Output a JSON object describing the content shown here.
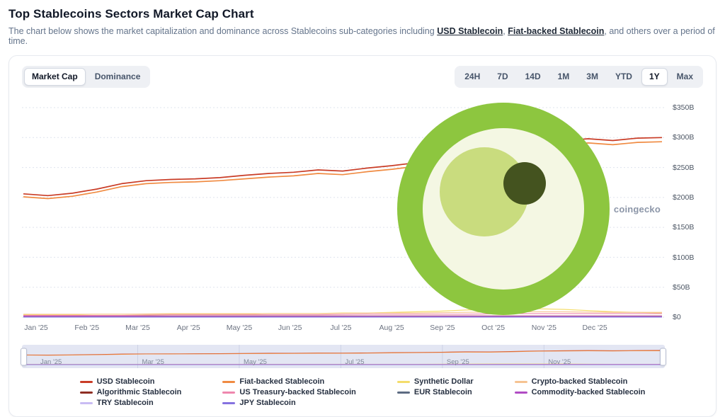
{
  "page": {
    "title": "Top Stablecoins Sectors Market Cap Chart",
    "subtitle_prefix": "The chart below shows the market capitalization and dominance across Stablecoins sub-categories including ",
    "usd_link": "USD Stablecoin",
    "subtitle_mid": ", ",
    "fiat_link": "Fiat-backed Stablecoin",
    "subtitle_suffix": ", and others over a period of time."
  },
  "toolbar": {
    "metric_tabs": [
      {
        "label": "Market Cap",
        "active": true
      },
      {
        "label": "Dominance",
        "active": false
      }
    ],
    "range_tabs": [
      {
        "label": "24H",
        "active": false
      },
      {
        "label": "7D",
        "active": false
      },
      {
        "label": "14D",
        "active": false
      },
      {
        "label": "1M",
        "active": false
      },
      {
        "label": "3M",
        "active": false
      },
      {
        "label": "YTD",
        "active": false
      },
      {
        "label": "1Y",
        "active": true
      },
      {
        "label": "Max",
        "active": false
      }
    ]
  },
  "watermark": {
    "label": "coingecko"
  },
  "chart_data": {
    "type": "line",
    "title": "Top Stablecoins Sectors Market Cap",
    "unit": "USD billions",
    "selected_range": "1Y",
    "ylim": [
      0,
      350
    ],
    "y_ticks": [
      0,
      50,
      100,
      150,
      200,
      250,
      300,
      350
    ],
    "y_tick_labels": [
      "$0",
      "$50B",
      "$100B",
      "$150B",
      "$200B",
      "$250B",
      "$300B",
      "$350B"
    ],
    "x_tick_labels": [
      "Jan '25",
      "Feb '25",
      "Mar '25",
      "Apr '25",
      "May '25",
      "Jun '25",
      "Jul '25",
      "Aug '25",
      "Sep '25",
      "Oct '25",
      "Nov '25",
      "Dec '25"
    ],
    "navigator_labels": [
      "Jan '25",
      "Mar '25",
      "May '25",
      "Jul '25",
      "Sep '25",
      "Nov '25"
    ],
    "grid": "horizontal-dotted",
    "legend_position": "bottom",
    "series": [
      {
        "name": "USD Stablecoin",
        "color": "#c93c26",
        "stroke_width": 1.7,
        "values": [
          206,
          203,
          207,
          214,
          223,
          228,
          230,
          231,
          233,
          237,
          240,
          242,
          246,
          244,
          249,
          253,
          258,
          264,
          271,
          268,
          280,
          290,
          295,
          298,
          295,
          299,
          300
        ]
      },
      {
        "name": "Fiat-backed Stablecoin",
        "color": "#f08b42",
        "stroke_width": 1.7,
        "values": [
          201,
          198,
          202,
          209,
          218,
          223,
          225,
          226,
          228,
          231,
          234,
          236,
          240,
          238,
          243,
          247,
          252,
          258,
          264,
          262,
          273,
          283,
          288,
          291,
          288,
          292,
          293
        ]
      },
      {
        "name": "Synthetic Dollar",
        "color": "#f4dd6b",
        "stroke_width": 1.2,
        "values": [
          4,
          4,
          4,
          5,
          5,
          5,
          5,
          5,
          5,
          5,
          6,
          6,
          6,
          7,
          7,
          8,
          9,
          10,
          12,
          13,
          14,
          14,
          13,
          11,
          9,
          8,
          7
        ]
      },
      {
        "name": "Crypto-backed Stablecoin",
        "color": "#f6c392",
        "stroke_width": 1.1,
        "values": [
          5,
          5,
          5,
          6,
          6,
          6,
          6,
          7,
          7,
          8,
          9,
          9,
          8,
          8
        ]
      },
      {
        "name": "Algorithmic Stablecoin",
        "color": "#8f2d23",
        "stroke_width": 1.1,
        "values": [
          2,
          2,
          2,
          2,
          2,
          2,
          2,
          2,
          2,
          2,
          2,
          2,
          2,
          2
        ]
      },
      {
        "name": "US Treasury-backed Stablecoin",
        "color": "#ef87ae",
        "stroke_width": 1.1,
        "values": [
          3,
          3,
          3,
          4,
          4,
          4,
          4,
          5,
          5,
          5,
          6,
          6,
          6,
          6
        ]
      },
      {
        "name": "EUR Stablecoin",
        "color": "#5d6b82",
        "stroke_width": 1.1,
        "values": [
          0.4,
          0.4,
          0.4,
          0.4,
          0.4,
          0.4,
          0.4,
          0.4,
          0.4,
          0.4,
          0.4,
          0.4,
          0.4,
          0.4
        ]
      },
      {
        "name": "Commodity-backed Stablecoin",
        "color": "#b14cc4",
        "stroke_width": 1.1,
        "values": [
          1.5,
          1.5,
          1.5,
          1.5,
          1.5,
          1.5,
          1.5,
          1.5,
          1.5,
          1.5,
          1.5,
          1.5,
          1.5,
          1.5
        ]
      },
      {
        "name": "TRY Stablecoin",
        "color": "#c9bcf4",
        "stroke_width": 1.1,
        "values": [
          0.15,
          0.15,
          0.15,
          0.15,
          0.15,
          0.15,
          0.15,
          0.15,
          0.15,
          0.15,
          0.15,
          0.15,
          0.15,
          0.15
        ]
      },
      {
        "name": "JPY Stablecoin",
        "color": "#8572e0",
        "stroke_width": 1.1,
        "values": [
          0.05,
          0.05,
          0.05,
          0.05,
          0.05,
          0.05,
          0.05,
          0.05,
          0.05,
          0.05,
          0.05,
          0.05,
          0.05,
          0.05
        ]
      }
    ]
  }
}
